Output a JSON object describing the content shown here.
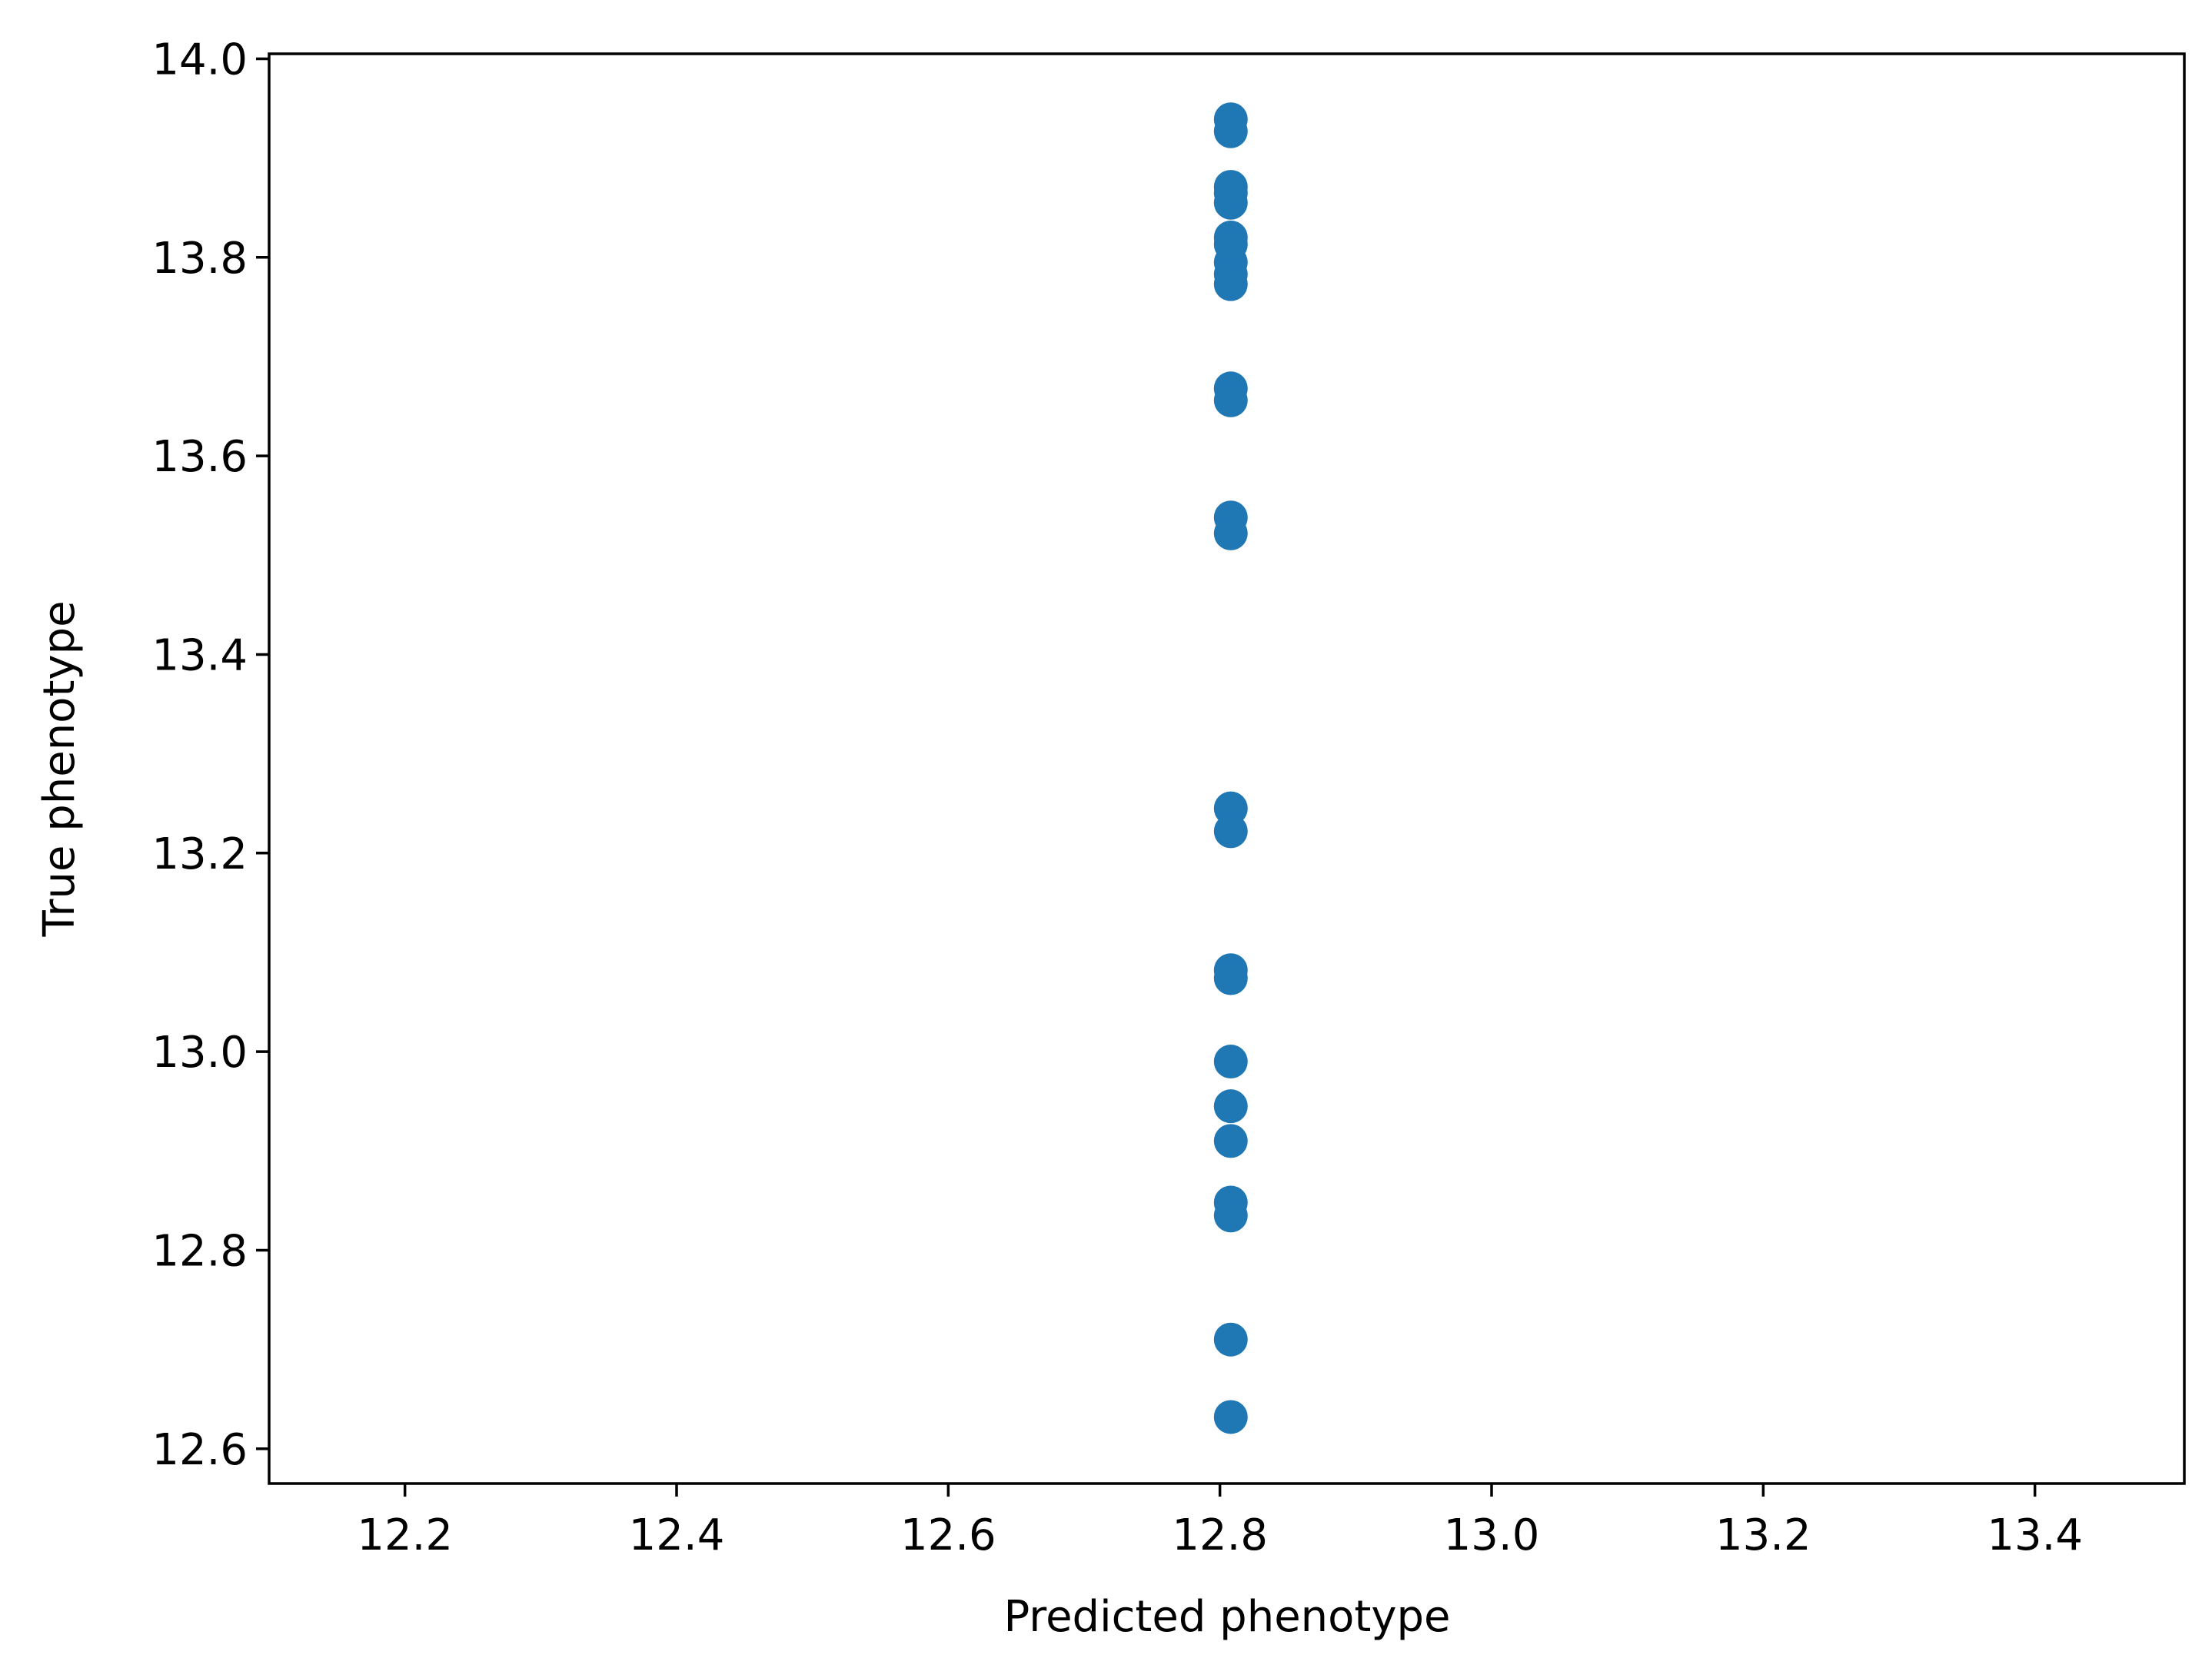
{
  "chart_data": {
    "type": "scatter",
    "title": "",
    "xlabel": "Predicted phenotype",
    "ylabel": "True phenotype",
    "xlim": [
      12.1,
      13.51
    ],
    "ylim": [
      12.565,
      14.005
    ],
    "xticks": [
      "12.2",
      "12.4",
      "12.6",
      "12.8",
      "13.0",
      "13.2",
      "13.4"
    ],
    "yticks": [
      "12.6",
      "12.8",
      "13.0",
      "13.2",
      "13.4",
      "13.6",
      "13.8",
      "14.0"
    ],
    "grid": false,
    "legend": "none",
    "marker_color": "#1f77b4",
    "series": [
      {
        "x": [
          12.808,
          12.808,
          12.808,
          12.808,
          12.808,
          12.808,
          12.808,
          12.808,
          12.808,
          12.808,
          12.808,
          12.808,
          12.808,
          12.808,
          12.808,
          12.808,
          12.808,
          12.808,
          12.808,
          12.808,
          12.808,
          12.808,
          12.808,
          12.808,
          12.808
        ],
        "y": [
          13.939,
          13.927,
          13.871,
          13.855,
          13.82,
          13.795,
          13.783,
          13.773,
          13.668,
          13.656,
          13.538,
          13.522,
          13.245,
          13.222,
          13.082,
          13.074,
          12.99,
          12.945,
          12.91,
          12.848,
          12.835,
          12.71,
          12.632,
          13.865,
          13.813
        ]
      }
    ]
  }
}
